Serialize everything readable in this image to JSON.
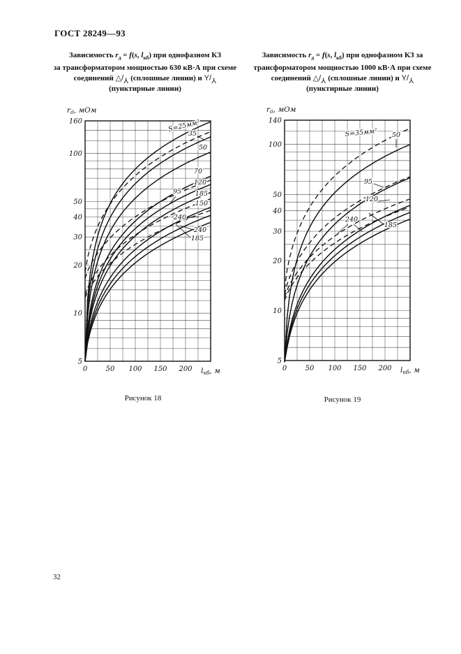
{
  "page": {
    "header": "ГОСТ 28249—93",
    "page_number": "32"
  },
  "fig18": {
    "caption": "Рисунок 18",
    "title_parts": {
      "p1": "Зависимость ",
      "r": "r",
      "rsub": "д",
      "eq": " = ",
      "f": "f",
      "paren": "(",
      "s": "s",
      "comma": ", ",
      "l": "l",
      "lsub": "кб",
      "p1end": ") при однофазном КЗ",
      "line2": "за трансформатором мощностью 630 кВ·А при схеме",
      "p3": "соединений ",
      "sym1pre": "△/",
      "sym1y": "Y",
      "p3mid": " (сплошные линии) и ",
      "sym2pre": "Y/",
      "sym2y": "Y",
      "line4": "(пунктирные линии)"
    }
  },
  "fig19": {
    "caption": "Рисунок 19",
    "title_parts": {
      "p1": "Зависимость ",
      "r": "r",
      "rsub": "д",
      "eq": " = ",
      "f": "f",
      "paren": "(",
      "s": "s",
      "comma": ", ",
      "l": "l",
      "lsub": "кб",
      "p1end": ") при однофазном КЗ за",
      "line2": "трансформатором мощностью 1000 кВ·А при схеме",
      "p3": "соединений ",
      "sym1pre": "△/",
      "sym1y": "Y",
      "p3mid": " (сплошные линии) и ",
      "sym2pre": "Y/",
      "sym2y": "Y",
      "line4": "(пунктирные линии)"
    }
  },
  "chart_data": [
    {
      "figure": "Рисунок 18",
      "type": "line",
      "title": "Зависимость rд = f(s, lкб) при однофазном КЗ за трансформатором мощностью 630 кВ·А при схеме соединений △/Y (сплошные линии) и Y/Y (пунктирные линии)",
      "xlabel": "lкб, м",
      "ylabel": "rд, мОм",
      "yscale": "log",
      "xlim": [
        0,
        250
      ],
      "ylim": [
        5,
        160
      ],
      "xticks": [
        0,
        50,
        100,
        150,
        200
      ],
      "yticks": [
        160,
        100,
        50,
        40,
        30,
        20,
        10,
        5
      ],
      "grid_x_step": 25,
      "grid_y": [
        5,
        6,
        7,
        8,
        9,
        10,
        12,
        14,
        16,
        18,
        20,
        25,
        30,
        35,
        40,
        45,
        50,
        60,
        70,
        80,
        90,
        100,
        120,
        140,
        160
      ],
      "legend": {
        "solid": "△/Y — сплошные линии",
        "dashed": "Y/Y — пунктирные линии"
      },
      "x_samples": [
        0,
        50,
        100,
        150,
        200,
        250
      ],
      "ylabel_parts": {
        "pre": "r",
        "sub": "д",
        "post": ", мОм"
      },
      "xlabel_parts": {
        "pre": "l",
        "sub": "кб",
        "post": ", м"
      },
      "series": [
        {
          "name": "S=25 мм² (сплошная)",
          "s": 25,
          "style": "solid",
          "r0": 5,
          "rEnd": 158,
          "exp": 0.78,
          "values": [
            5,
            49,
            80,
            108,
            134,
            158
          ]
        },
        {
          "name": "S=35 мм² (сплошная)",
          "s": 35,
          "style": "solid",
          "r0": 5,
          "rEnd": 127,
          "exp": 0.78,
          "values": [
            5,
            40,
            65,
            87,
            107,
            127
          ]
        },
        {
          "name": "S=50 мм² (сплошная)",
          "s": 50,
          "style": "solid",
          "r0": 5,
          "rEnd": 102,
          "exp": 0.78,
          "values": [
            5,
            33,
            53,
            70,
            86,
            102
          ]
        },
        {
          "name": "S=70 мм² (сплошная)",
          "s": 70,
          "style": "solid",
          "r0": 5,
          "rEnd": 72,
          "exp": 0.78,
          "values": [
            5,
            24,
            38,
            50,
            61,
            72
          ]
        },
        {
          "name": "S=95 мм² (сплошная)",
          "s": 95,
          "style": "solid",
          "r0": 5,
          "rEnd": 64,
          "exp": 0.78,
          "values": [
            5,
            22,
            34,
            45,
            55,
            64
          ]
        },
        {
          "name": "S=120 мм² (сплошная)",
          "s": 120,
          "style": "solid",
          "r0": 5,
          "rEnd": 57,
          "exp": 0.78,
          "values": [
            5,
            20,
            30,
            40,
            49,
            57
          ]
        },
        {
          "name": "S=150 мм² (сплошная)",
          "s": 150,
          "style": "solid",
          "r0": 5,
          "rEnd": 46,
          "exp": 0.78,
          "values": [
            5,
            17,
            25,
            33,
            39,
            46
          ]
        },
        {
          "name": "S=185 мм² (сплошная)",
          "s": 185,
          "style": "solid",
          "r0": 5,
          "rEnd": 41,
          "exp": 0.78,
          "values": [
            5,
            15,
            23,
            29,
            35,
            41
          ]
        },
        {
          "name": "S=240 мм² (сплошная)",
          "s": 240,
          "style": "solid",
          "r0": 5,
          "rEnd": 37,
          "exp": 0.78,
          "values": [
            5,
            14,
            21,
            26,
            32,
            37
          ]
        },
        {
          "name": "S=35 мм² (пунктир)",
          "s": 35,
          "style": "dashed",
          "r0": 18,
          "rEnd": 137,
          "exp": 0.85,
          "values": [
            18,
            48,
            73,
            95,
            116,
            137
          ]
        },
        {
          "name": "S=95 мм² (пунктир)",
          "s": 95,
          "style": "dashed",
          "r0": 16.5,
          "rEnd": 68,
          "exp": 0.85,
          "values": [
            16.5,
            30,
            40,
            50,
            59,
            68
          ]
        },
        {
          "name": "S=185 мм² (пунктир)",
          "s": 185,
          "style": "dashed",
          "r0": 13,
          "rEnd": 52,
          "exp": 0.85,
          "values": [
            13,
            23,
            31,
            38,
            45,
            52
          ]
        },
        {
          "name": "S=240 мм² (пунктир)",
          "s": 240,
          "style": "dashed",
          "r0": 12.5,
          "rEnd": 44,
          "exp": 0.85,
          "values": [
            12.5,
            21,
            27,
            33,
            39,
            44
          ]
        }
      ],
      "labels": [
        {
          "text": "S=25мм²",
          "x": 150,
          "y": 40,
          "rot": -13,
          "anchor": "start"
        },
        {
          "text": "35",
          "x": 184,
          "y": 46,
          "leaders": [
            [
              191,
              47,
              201,
              52
            ]
          ]
        },
        {
          "text": "50",
          "x": 199,
          "y": 66
        },
        {
          "text": "70",
          "x": 192,
          "y": 100
        },
        {
          "text": "120",
          "x": 195,
          "y": 116
        },
        {
          "text": "95",
          "x": 162,
          "y": 129,
          "leaders": [
            [
              160,
              133,
              152,
              143
            ]
          ]
        },
        {
          "text": "185",
          "x": 197,
          "y": 132
        },
        {
          "text": "150",
          "x": 197,
          "y": 146
        },
        {
          "text": "240",
          "x": 166,
          "y": 166,
          "leaders": [
            [
              176,
              164,
              193,
              162
            ]
          ]
        },
        {
          "text": "240",
          "x": 195,
          "y": 184,
          "leaders": [
            [
              186,
              181,
              166,
              175
            ]
          ]
        },
        {
          "text": "185",
          "x": 191,
          "y": 196,
          "leaders": [
            [
              181,
              192,
              160,
              173
            ]
          ]
        }
      ]
    },
    {
      "figure": "Рисунок 19",
      "type": "line",
      "title": "Зависимость rд = f(s, lкб) при однофазном КЗ за трансформатором мощностью 1000 кВ·А при схеме соединений △/Y (сплошные линии) и Y/Y (пунктирные линии)",
      "xlabel": "lкб, м",
      "ylabel": "rд, мОм",
      "yscale": "log",
      "xlim": [
        0,
        250
      ],
      "ylim": [
        5,
        140
      ],
      "xticks": [
        0,
        50,
        100,
        150,
        200
      ],
      "yticks": [
        140,
        100,
        50,
        40,
        30,
        20,
        10,
        5
      ],
      "grid_x_step": 25,
      "grid_y": [
        5,
        6,
        7,
        8,
        9,
        10,
        12,
        14,
        16,
        18,
        20,
        25,
        30,
        35,
        40,
        45,
        50,
        60,
        70,
        80,
        90,
        100,
        120,
        140
      ],
      "legend": {
        "solid": "△/Y — сплошные линии",
        "dashed": "Y/Y — пунктирные линии"
      },
      "x_samples": [
        0,
        50,
        100,
        150,
        200,
        250
      ],
      "ylabel_parts": {
        "pre": "r",
        "sub": "д",
        "post": ", мОм"
      },
      "xlabel_parts": {
        "pre": "l",
        "sub": "кб",
        "post": ", м"
      },
      "series": [
        {
          "name": "S=50 мм² (сплошная)",
          "s": 50,
          "style": "solid",
          "r0": 4.5,
          "rEnd": 100,
          "exp": 0.78,
          "values": [
            4.5,
            32,
            51,
            69,
            85,
            100
          ]
        },
        {
          "name": "S=95 мм² (сплошная)",
          "s": 95,
          "style": "solid",
          "r0": 4.5,
          "rEnd": 63,
          "exp": 0.78,
          "values": [
            4.5,
            21,
            33,
            44,
            54,
            63
          ]
        },
        {
          "name": "S=120 мм² (сплошная)",
          "s": 120,
          "style": "solid",
          "r0": 4.5,
          "rEnd": 43,
          "exp": 0.78,
          "values": [
            4.5,
            15,
            23,
            30,
            37,
            43
          ]
        },
        {
          "name": "S=185 мм² (сплошная)",
          "s": 185,
          "style": "solid",
          "r0": 4.5,
          "rEnd": 39,
          "exp": 0.78,
          "values": [
            4.5,
            14,
            21,
            28,
            33,
            39
          ]
        },
        {
          "name": "S=240 мм² (сплошная)",
          "s": 240,
          "style": "solid",
          "r0": 4.5,
          "rEnd": 35.5,
          "exp": 0.78,
          "values": [
            4.5,
            13,
            20,
            25,
            30,
            35.5
          ]
        },
        {
          "name": "S=35 мм² (пунктир)",
          "s": 35,
          "style": "dashed",
          "r0": 13.5,
          "rEnd": 125,
          "exp": 0.85,
          "values": [
            13.5,
            42,
            65,
            86,
            106,
            125
          ]
        },
        {
          "name": "S=95 мм² (пунктир)",
          "s": 95,
          "style": "dashed",
          "r0": 12.5,
          "rEnd": 64,
          "exp": 0.85,
          "values": [
            12.5,
            26,
            36,
            46,
            55,
            64
          ]
        },
        {
          "name": "S=120 мм² (пунктир)",
          "s": 120,
          "style": "dashed",
          "r0": 12,
          "rEnd": 47,
          "exp": 0.85,
          "values": [
            12,
            21,
            28,
            35,
            41,
            47
          ]
        },
        {
          "name": "S=240 мм² (пунктир)",
          "s": 240,
          "style": "dashed",
          "r0": 11.5,
          "rEnd": 42,
          "exp": 0.85,
          "values": [
            11.5,
            19,
            26,
            31,
            37,
            42
          ]
        }
      ],
      "labels": [
        {
          "text": "S=35мм²",
          "x": 117,
          "y": 48,
          "rot": -6,
          "anchor": "start"
        },
        {
          "text": "50",
          "x": 190,
          "y": 49,
          "leaders": [
            [
              190,
              52,
              190,
              64
            ]
          ]
        },
        {
          "text": "95",
          "x": 150,
          "y": 116,
          "leaders": [
            [
              158,
              116,
              172,
              121
            ]
          ]
        },
        {
          "text": "120",
          "x": 155,
          "y": 141,
          "leaders": [
            [
              164,
              141,
              181,
              139
            ]
          ]
        },
        {
          "text": "240",
          "x": 126,
          "y": 170,
          "leaders": [
            [
              121,
              174,
              106,
              187
            ],
            [
              129,
              174,
              142,
              185
            ]
          ]
        },
        {
          "text": "185",
          "x": 182,
          "y": 178,
          "leaders": [
            [
              172,
              174,
              151,
              158
            ]
          ]
        }
      ]
    }
  ]
}
